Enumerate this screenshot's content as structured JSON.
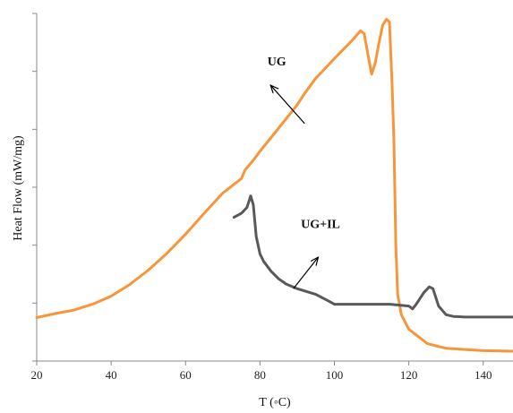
{
  "chart_data": {
    "type": "line",
    "title": "",
    "xlabel": "T (◦C)",
    "ylabel": "Heat Flow (mW/mg)",
    "xlim": [
      20,
      148
    ],
    "ylim": [
      0,
      6
    ],
    "x_ticks": [
      20,
      40,
      60,
      80,
      100,
      120,
      140
    ],
    "y_tick_count": 7,
    "y_tick_labels_shown": false,
    "grid": false,
    "legend": "none",
    "series": [
      {
        "name": "UG",
        "color": "#F7953A",
        "points": [
          [
            20,
            0.75
          ],
          [
            25,
            0.82
          ],
          [
            30,
            0.88
          ],
          [
            35,
            0.98
          ],
          [
            40,
            1.12
          ],
          [
            45,
            1.32
          ],
          [
            50,
            1.57
          ],
          [
            55,
            1.86
          ],
          [
            60,
            2.19
          ],
          [
            65,
            2.55
          ],
          [
            70,
            2.9
          ],
          [
            73,
            3.05
          ],
          [
            75,
            3.15
          ],
          [
            76,
            3.3
          ],
          [
            78,
            3.45
          ],
          [
            80,
            3.62
          ],
          [
            85,
            4.02
          ],
          [
            90,
            4.42
          ],
          [
            92,
            4.62
          ],
          [
            95,
            4.88
          ],
          [
            100,
            5.22
          ],
          [
            105,
            5.55
          ],
          [
            107,
            5.7
          ],
          [
            108,
            5.65
          ],
          [
            109,
            5.3
          ],
          [
            110,
            4.95
          ],
          [
            111,
            5.15
          ],
          [
            112,
            5.5
          ],
          [
            113,
            5.8
          ],
          [
            114,
            5.9
          ],
          [
            114.8,
            5.85
          ],
          [
            115.5,
            4.8
          ],
          [
            116,
            3.8
          ],
          [
            116.5,
            2.0
          ],
          [
            117,
            1.15
          ],
          [
            118,
            0.8
          ],
          [
            120,
            0.55
          ],
          [
            125,
            0.3
          ],
          [
            130,
            0.22
          ],
          [
            135,
            0.2
          ],
          [
            140,
            0.18
          ],
          [
            148,
            0.17
          ]
        ]
      },
      {
        "name": "UG+IL",
        "color": "#595959",
        "points": [
          [
            73,
            2.48
          ],
          [
            75,
            2.55
          ],
          [
            76.5,
            2.65
          ],
          [
            77.5,
            2.85
          ],
          [
            78.2,
            2.7
          ],
          [
            79,
            2.15
          ],
          [
            80,
            1.85
          ],
          [
            81,
            1.72
          ],
          [
            83,
            1.55
          ],
          [
            85,
            1.42
          ],
          [
            87,
            1.33
          ],
          [
            90,
            1.25
          ],
          [
            95,
            1.15
          ],
          [
            98,
            1.05
          ],
          [
            100,
            0.98
          ],
          [
            105,
            0.98
          ],
          [
            110,
            0.98
          ],
          [
            115,
            0.98
          ],
          [
            120,
            0.95
          ],
          [
            121,
            0.9
          ],
          [
            122,
            0.98
          ],
          [
            124,
            1.18
          ],
          [
            125.5,
            1.28
          ],
          [
            126.5,
            1.25
          ],
          [
            128,
            0.95
          ],
          [
            130,
            0.8
          ],
          [
            132,
            0.77
          ],
          [
            135,
            0.76
          ],
          [
            140,
            0.76
          ],
          [
            148,
            0.76
          ]
        ]
      }
    ],
    "annotations": [
      {
        "text": "UG",
        "label_at": [
          82,
          5.1
        ],
        "arrow_from": [
          92,
          4.1
        ],
        "arrow_to": [
          83,
          4.75
        ]
      },
      {
        "text": "UG+IL",
        "label_at": [
          91,
          2.3
        ],
        "arrow_from": [
          89,
          1.25
        ],
        "arrow_to": [
          95.5,
          1.78
        ]
      }
    ]
  }
}
